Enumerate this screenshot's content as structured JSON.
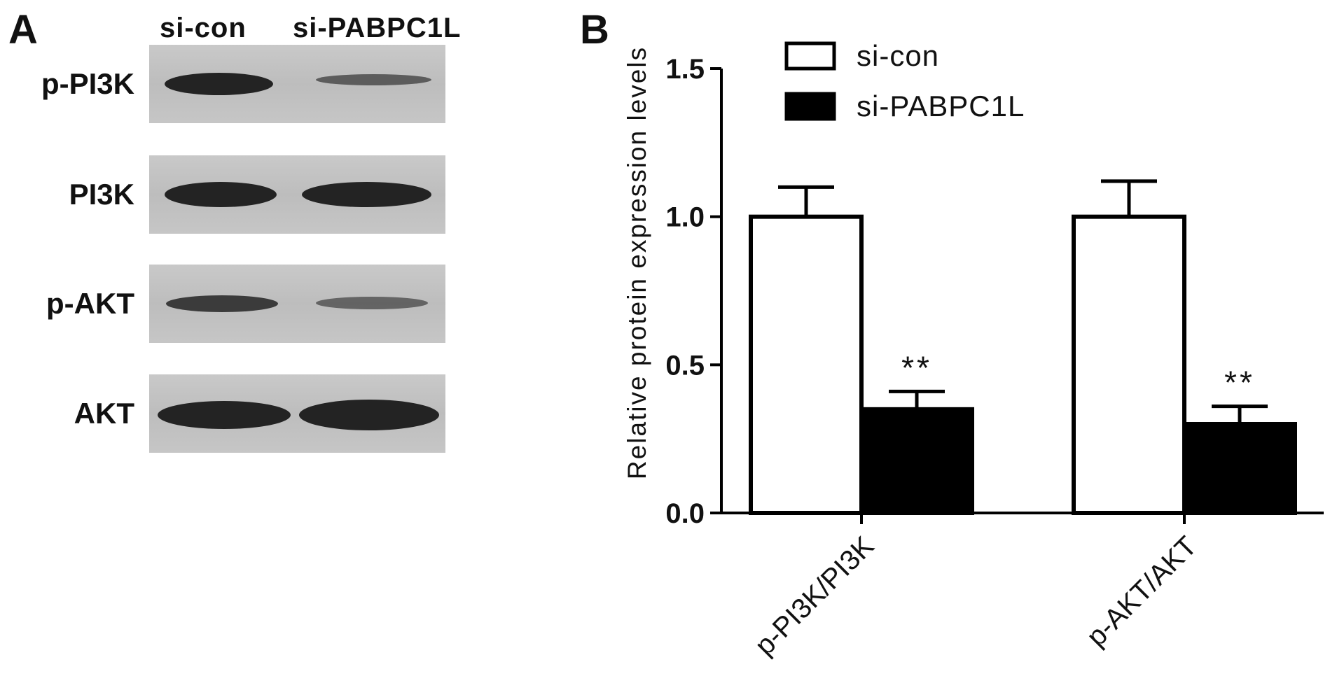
{
  "panel_a": {
    "letter": "A",
    "lanes": [
      "si-con",
      "si-PABPC1L"
    ],
    "rows": [
      {
        "label": "p-PI3K",
        "band_intensity": [
          1.0,
          0.35
        ]
      },
      {
        "label": "PI3K",
        "band_intensity": [
          1.0,
          1.0
        ]
      },
      {
        "label": "p-AKT",
        "band_intensity": [
          0.8,
          0.45
        ]
      },
      {
        "label": "AKT",
        "band_intensity": [
          1.0,
          1.0
        ]
      }
    ]
  },
  "panel_b": {
    "letter": "B"
  },
  "colors": {
    "si_con_fill": "#ffffff",
    "si_pabpc1l_fill": "#000000",
    "axis": "#000000"
  },
  "chart_data": {
    "type": "bar",
    "categories": [
      "p-PI3K/PI3K",
      "p-AKT/AKT"
    ],
    "series": [
      {
        "name": "si-con",
        "values": [
          1.0,
          1.0
        ],
        "errors": [
          0.1,
          0.12
        ]
      },
      {
        "name": "si-PABPC1L",
        "values": [
          0.35,
          0.3
        ],
        "errors": [
          0.06,
          0.06
        ]
      }
    ],
    "annotations": [
      {
        "category": "p-PI3K/PI3K",
        "series": "si-PABPC1L",
        "text": "**"
      },
      {
        "category": "p-AKT/AKT",
        "series": "si-PABPC1L",
        "text": "**"
      }
    ],
    "title": "",
    "xlabel": "",
    "ylabel": "Relative protein expression levels",
    "ylim": [
      0,
      1.5
    ],
    "yticks": [
      0.0,
      0.5,
      1.0,
      1.5
    ],
    "ytick_labels": [
      "0.0",
      "0.5",
      "1.0",
      "1.5"
    ],
    "legend": "top-left",
    "grid": false
  }
}
